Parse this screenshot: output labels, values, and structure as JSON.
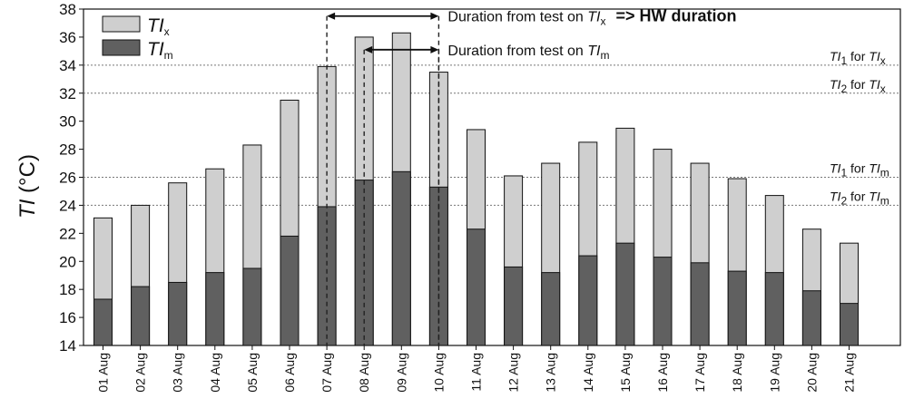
{
  "chart_data": {
    "type": "bar",
    "ylabel_main": "TI",
    "ylabel_unit": "(°C)",
    "ylim": [
      14,
      38
    ],
    "yticks": [
      14,
      16,
      18,
      20,
      22,
      24,
      26,
      28,
      30,
      32,
      34,
      36,
      38
    ],
    "categories": [
      "01 Aug",
      "02 Aug",
      "03 Aug",
      "04 Aug",
      "05 Aug",
      "06 Aug",
      "07 Aug",
      "08 Aug",
      "09 Aug",
      "10 Aug",
      "11 Aug",
      "12 Aug",
      "13 Aug",
      "14 Aug",
      "15 Aug",
      "16 Aug",
      "17 Aug",
      "18 Aug",
      "19 Aug",
      "20 Aug",
      "21 Aug"
    ],
    "series": [
      {
        "name": "TIx",
        "label_main": "TI",
        "label_sub": "x",
        "color": "#cfcfcf",
        "values": [
          23.1,
          24.0,
          25.6,
          26.6,
          28.3,
          31.5,
          33.9,
          36.0,
          36.3,
          33.5,
          29.4,
          26.1,
          27.0,
          28.5,
          29.5,
          28.0,
          27.0,
          25.9,
          24.7,
          22.3,
          21.3
        ]
      },
      {
        "name": "TIm",
        "label_main": "TI",
        "label_sub": "m",
        "color": "#606060",
        "values": [
          17.3,
          18.2,
          18.5,
          19.2,
          19.5,
          21.8,
          23.9,
          25.8,
          26.4,
          25.3,
          22.3,
          19.6,
          19.2,
          20.4,
          21.3,
          20.3,
          19.9,
          19.3,
          19.2,
          17.9,
          17.0
        ]
      }
    ],
    "thresholds": [
      {
        "value": 34,
        "main": "TI",
        "sub": "1",
        "for_text": " for ",
        "target": "TI",
        "target_sub": "x"
      },
      {
        "value": 32,
        "main": "TI",
        "sub": "2",
        "for_text": " for ",
        "target": "TI",
        "target_sub": "x"
      },
      {
        "value": 26,
        "main": "TI",
        "sub": "1",
        "for_text": " for ",
        "target": "TI",
        "target_sub": "m"
      },
      {
        "value": 24,
        "main": "TI",
        "sub": "2",
        "for_text": " for ",
        "target": "TI",
        "target_sub": "m"
      }
    ],
    "durations": [
      {
        "text": "Duration from test on ",
        "var": "TI",
        "var_sub": "x",
        "suffix": "=> HW duration",
        "start": "07 Aug",
        "end": "10 Aug",
        "level": 37.5
      },
      {
        "text": "Duration from test on ",
        "var": "TI",
        "var_sub": "m",
        "suffix": "",
        "start": "08 Aug",
        "end": "10 Aug",
        "level": 35.1
      }
    ],
    "grid": "horizontal dotted at threshold levels",
    "legend_position": "top-left"
  }
}
